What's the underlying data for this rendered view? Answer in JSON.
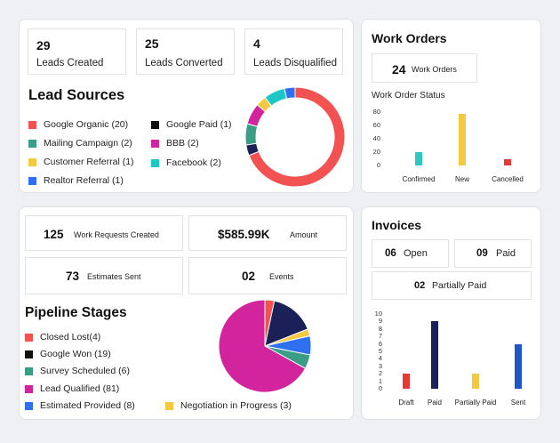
{
  "leads": {
    "stats": [
      {
        "value": "29",
        "label": "Leads Created"
      },
      {
        "value": "25",
        "label": "Leads Converted"
      },
      {
        "value": "4",
        "label": "Leads Disqualified"
      }
    ],
    "title": "Lead Sources",
    "legend": [
      {
        "label": "Google Organic (20)",
        "color": "#f25252"
      },
      {
        "label": "Google Paid (1)",
        "color": "#111111"
      },
      {
        "label": "Mailing Campaign (2)",
        "color": "#3a9e86"
      },
      {
        "label": "BBB (2)",
        "color": "#d1249d"
      },
      {
        "label": "Customer Referral (1)",
        "color": "#f5c842"
      },
      {
        "label": "Facebook (2)",
        "color": "#1fc6c6"
      },
      {
        "label": "Realtor Referral (1)",
        "color": "#2f6ff0"
      }
    ]
  },
  "work_orders": {
    "title": "Work Orders",
    "count": "24",
    "count_label": "Work Orders",
    "status_title": "Work Order Status"
  },
  "requests": {
    "stats": [
      {
        "value": "125",
        "label": "Work Requests Created"
      },
      {
        "value": "$585.99K",
        "label": "Amount"
      },
      {
        "value": "73",
        "label": "Estimates Sent"
      },
      {
        "value": "02",
        "label": "Events"
      }
    ],
    "title": "Pipeline Stages",
    "legend": [
      {
        "label": "Closed Lost(4)",
        "color": "#f25252"
      },
      {
        "label": "Google Won (19)",
        "color": "#111111"
      },
      {
        "label": "Survey Scheduled (6)",
        "color": "#3a9e86"
      },
      {
        "label": "Lead Qualified (81)",
        "color": "#d1249d"
      },
      {
        "label": "Estimated Provided (8)",
        "color": "#2f6ff0"
      },
      {
        "label": "Negotiation in Progress (3)",
        "color": "#f5c842"
      }
    ]
  },
  "invoices": {
    "title": "Invoices",
    "stats": [
      {
        "value": "06",
        "label": "Open"
      },
      {
        "value": "09",
        "label": "Paid"
      },
      {
        "value": "02",
        "label": "Partially Paid"
      }
    ]
  },
  "chart_data": [
    {
      "type": "pie",
      "title": "Lead Sources",
      "variant": "donut",
      "categories": [
        "Google Organic",
        "Google Paid",
        "Mailing Campaign",
        "BBB",
        "Customer Referral",
        "Facebook",
        "Realtor Referral"
      ],
      "values": [
        20,
        1,
        2,
        2,
        1,
        2,
        1
      ],
      "colors": [
        "#f25252",
        "#1b2158",
        "#3a9e86",
        "#d1249d",
        "#f5c842",
        "#1fc6c6",
        "#2f6ff0"
      ]
    },
    {
      "type": "bar",
      "title": "Work Order Status",
      "categories": [
        "Confirmed",
        "New",
        "Cancelled"
      ],
      "values": [
        20,
        77,
        10
      ],
      "colors": [
        "#2fc7c0",
        "#f5c842",
        "#e53935"
      ],
      "ylim": [
        0,
        80
      ],
      "yticks": [
        "80",
        "60",
        "40",
        "20",
        "0"
      ]
    },
    {
      "type": "pie",
      "title": "Pipeline Stages",
      "categories": [
        "Closed Lost",
        "Google Won",
        "Negotiation in Progress",
        "Estimated Provided",
        "Survey Scheduled",
        "Lead Qualified"
      ],
      "values": [
        4,
        19,
        3,
        8,
        6,
        81
      ],
      "colors": [
        "#f25252",
        "#1b2158",
        "#f5c842",
        "#2f6ff0",
        "#3a9e86",
        "#d1249d"
      ]
    },
    {
      "type": "bar",
      "title": "Invoices",
      "categories": [
        "Draft",
        "Paid",
        "Partially Paid",
        "Sent"
      ],
      "values": [
        2,
        9,
        2,
        6
      ],
      "colors": [
        "#e53935",
        "#1b2158",
        "#f5c842",
        "#1f57c9"
      ],
      "ylim": [
        0,
        10
      ],
      "yticks": [
        "10",
        "9",
        "8",
        "7",
        "6",
        "5",
        "4",
        "3",
        "2",
        "1",
        "0"
      ]
    }
  ]
}
